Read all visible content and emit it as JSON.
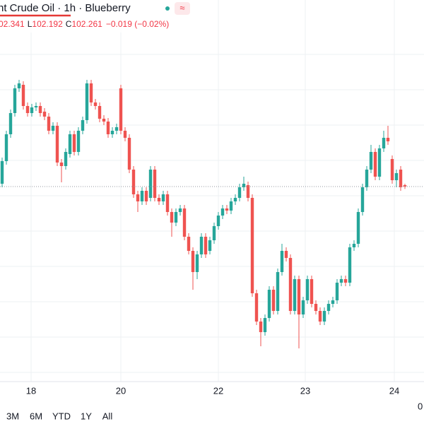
{
  "header": {
    "title": "nt Crude Oil · 1h · Blueberry",
    "badge": "≈",
    "ohlc": {
      "high": "02.341",
      "low_label": "L",
      "low": "102.192",
      "close_label": "C",
      "close": "102.261",
      "change": "−0.019 (−0.02%)"
    }
  },
  "chart_data": {
    "type": "candlestick",
    "up_color": "#26a69a",
    "down_color": "#ef5350",
    "xlim": [
      -0.5,
      99.5
    ],
    "ylim": [
      96.74,
      107.54
    ],
    "ygrid": [
      97,
      98,
      99,
      100,
      101,
      102,
      103,
      104,
      105,
      106
    ],
    "xticks": [
      {
        "value": 6.83,
        "label": "18"
      },
      {
        "value": 28,
        "label": "20"
      },
      {
        "value": 51,
        "label": "22"
      },
      {
        "value": 71.5,
        "label": "23"
      },
      {
        "value": 92.5,
        "label": "24"
      }
    ],
    "candles": [
      [
        102.34,
        103.08,
        102.24,
        102.98
      ],
      [
        102.98,
        103.84,
        102.88,
        103.74
      ],
      [
        103.74,
        104.44,
        103.64,
        104.34
      ],
      [
        104.34,
        105.14,
        104.24,
        105.04
      ],
      [
        105.04,
        105.28,
        104.94,
        105.18
      ],
      [
        105.14,
        105.24,
        104.44,
        104.54
      ],
      [
        104.54,
        104.64,
        104.24,
        104.34
      ],
      [
        104.34,
        104.6,
        104.24,
        104.5
      ],
      [
        104.5,
        104.64,
        104.4,
        104.54
      ],
      [
        104.54,
        104.64,
        104.24,
        104.34
      ],
      [
        104.38,
        104.48,
        104.14,
        104.24
      ],
      [
        104.24,
        104.34,
        103.74,
        103.84
      ],
      [
        103.84,
        104.08,
        103.74,
        103.98
      ],
      [
        103.98,
        104.08,
        102.84,
        102.94
      ],
      [
        102.94,
        103.04,
        102.38,
        102.84
      ],
      [
        102.84,
        103.34,
        102.74,
        103.24
      ],
      [
        103.18,
        103.84,
        103.08,
        103.74
      ],
      [
        103.74,
        103.84,
        103.14,
        103.24
      ],
      [
        103.24,
        103.94,
        103.14,
        103.84
      ],
      [
        103.84,
        104.24,
        103.74,
        104.14
      ],
      [
        104.14,
        105.28,
        104.04,
        105.18
      ],
      [
        105.18,
        105.28,
        104.54,
        104.64
      ],
      [
        104.64,
        104.74,
        104.44,
        104.54
      ],
      [
        104.54,
        104.64,
        104.08,
        104.18
      ],
      [
        104.18,
        104.28,
        104.0,
        104.1
      ],
      [
        104.1,
        104.2,
        103.64,
        103.74
      ],
      [
        103.74,
        103.94,
        103.64,
        103.84
      ],
      [
        103.84,
        104.04,
        103.74,
        103.94
      ],
      [
        105.04,
        105.14,
        103.74,
        103.84
      ],
      [
        103.84,
        103.94,
        103.54,
        103.64
      ],
      [
        103.64,
        103.74,
        102.64,
        102.74
      ],
      [
        102.74,
        102.84,
        101.94,
        102.04
      ],
      [
        102.04,
        102.14,
        101.54,
        101.84
      ],
      [
        101.84,
        102.24,
        101.74,
        102.14
      ],
      [
        102.14,
        102.24,
        101.74,
        101.84
      ],
      [
        101.94,
        102.84,
        101.84,
        102.74
      ],
      [
        102.74,
        102.84,
        101.84,
        101.94
      ],
      [
        101.94,
        102.04,
        101.74,
        101.84
      ],
      [
        101.84,
        102.14,
        101.74,
        102.04
      ],
      [
        102.04,
        102.14,
        101.44,
        101.54
      ],
      [
        101.54,
        101.64,
        100.84,
        101.24
      ],
      [
        101.24,
        101.64,
        101.14,
        101.54
      ],
      [
        101.54,
        101.74,
        101.44,
        101.64
      ],
      [
        101.64,
        101.74,
        100.74,
        100.84
      ],
      [
        100.84,
        100.94,
        100.34,
        100.44
      ],
      [
        100.44,
        100.54,
        99.34,
        99.84
      ],
      [
        99.84,
        100.44,
        99.64,
        100.34
      ],
      [
        100.34,
        100.94,
        100.24,
        100.84
      ],
      [
        100.84,
        100.94,
        100.24,
        100.34
      ],
      [
        100.44,
        100.84,
        100.34,
        100.74
      ],
      [
        100.74,
        101.24,
        100.64,
        101.14
      ],
      [
        101.14,
        101.54,
        101.04,
        101.44
      ],
      [
        101.44,
        101.74,
        101.34,
        101.64
      ],
      [
        101.64,
        101.74,
        101.48,
        101.58
      ],
      [
        101.58,
        101.94,
        101.48,
        101.84
      ],
      [
        101.84,
        102.04,
        101.74,
        101.94
      ],
      [
        101.94,
        102.34,
        101.84,
        102.24
      ],
      [
        102.24,
        102.54,
        102.14,
        102.34
      ],
      [
        102.3,
        102.4,
        101.84,
        101.94
      ],
      [
        101.94,
        102.04,
        99.14,
        99.24
      ],
      [
        99.24,
        99.34,
        98.34,
        98.44
      ],
      [
        98.44,
        98.54,
        97.74,
        98.14
      ],
      [
        98.14,
        98.64,
        98.04,
        98.54
      ],
      [
        98.54,
        99.44,
        98.44,
        99.34
      ],
      [
        99.34,
        99.44,
        98.64,
        98.74
      ],
      [
        98.74,
        99.94,
        98.64,
        99.84
      ],
      [
        99.84,
        100.64,
        99.74,
        100.44
      ],
      [
        100.44,
        100.54,
        100.14,
        100.24
      ],
      [
        100.24,
        100.34,
        98.64,
        98.74
      ],
      [
        98.74,
        99.74,
        98.64,
        99.64
      ],
      [
        99.64,
        99.74,
        97.68,
        98.64
      ],
      [
        98.64,
        99.14,
        98.54,
        99.04
      ],
      [
        99.04,
        99.74,
        98.94,
        99.64
      ],
      [
        99.64,
        99.74,
        98.84,
        98.94
      ],
      [
        98.94,
        99.04,
        98.64,
        98.74
      ],
      [
        98.74,
        98.84,
        98.34,
        98.44
      ],
      [
        98.44,
        98.84,
        98.34,
        98.74
      ],
      [
        98.74,
        99.04,
        98.64,
        98.94
      ],
      [
        98.94,
        99.14,
        98.84,
        99.04
      ],
      [
        99.04,
        99.64,
        98.94,
        99.54
      ],
      [
        99.54,
        99.74,
        99.44,
        99.64
      ],
      [
        99.64,
        99.74,
        99.44,
        99.54
      ],
      [
        99.54,
        100.64,
        99.44,
        100.54
      ],
      [
        100.54,
        100.74,
        100.44,
        100.64
      ],
      [
        100.64,
        101.64,
        100.54,
        101.54
      ],
      [
        101.54,
        102.34,
        101.44,
        102.24
      ],
      [
        102.24,
        102.84,
        102.14,
        102.74
      ],
      [
        102.74,
        103.44,
        102.64,
        103.24
      ],
      [
        103.24,
        103.34,
        102.44,
        102.54
      ],
      [
        102.54,
        103.44,
        102.44,
        103.34
      ],
      [
        103.34,
        103.84,
        103.24,
        103.64
      ],
      [
        103.64,
        103.98,
        103.44,
        103.54
      ],
      [
        103.04,
        103.14,
        102.34,
        102.44
      ],
      [
        102.44,
        102.74,
        102.24,
        102.64
      ],
      [
        102.74,
        102.84,
        102.14,
        102.24
      ],
      [
        102.3,
        102.341,
        102.192,
        102.261
      ]
    ]
  },
  "toolbar": {
    "ranges": [
      "3M",
      "6M",
      "YTD",
      "1Y",
      "All"
    ],
    "right": "0"
  }
}
